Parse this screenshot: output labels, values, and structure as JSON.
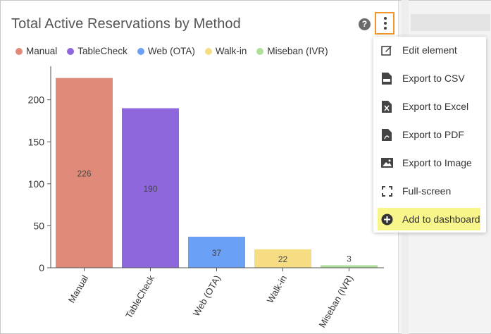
{
  "card": {
    "title": "Total Active Reservations by Method",
    "help_icon": "question-circle-icon",
    "more_icon": "kebab-vertical-icon"
  },
  "menu": {
    "items": [
      {
        "label": "Edit element",
        "icon": "edit-icon"
      },
      {
        "label": "Export to CSV",
        "icon": "csv-file-icon"
      },
      {
        "label": "Export to Excel",
        "icon": "excel-file-icon"
      },
      {
        "label": "Export to PDF",
        "icon": "pdf-file-icon"
      },
      {
        "label": "Export to Image",
        "icon": "image-icon"
      },
      {
        "label": "Full-screen",
        "icon": "fullscreen-icon"
      },
      {
        "label": "Add to dashboard",
        "icon": "plus-circle-icon",
        "highlight_color": "#f8f58a"
      }
    ]
  },
  "colors": {
    "accent_border": "#f0962b",
    "manual": "#e08a7a",
    "tablecheck": "#8e67dd",
    "web": "#6aa0f5",
    "walkin": "#f6dd84",
    "miseban": "#aee09a"
  },
  "chart_data": {
    "type": "bar",
    "categories": [
      "Manual",
      "TableCheck",
      "Web (OTA)",
      "Walk-in",
      "Miseban (IVR)"
    ],
    "values": [
      226,
      190,
      37,
      22,
      3
    ],
    "title": "Total Active Reservations by Method",
    "xlabel": "",
    "ylabel": "",
    "ylim": [
      0,
      240
    ],
    "yticks": [
      0,
      50,
      100,
      150,
      200
    ],
    "legend": [
      "Manual",
      "TableCheck",
      "Web (OTA)",
      "Walk-in",
      "Miseban (IVR)"
    ],
    "legend_position": "top-left",
    "grid": false,
    "data_labels": true
  }
}
